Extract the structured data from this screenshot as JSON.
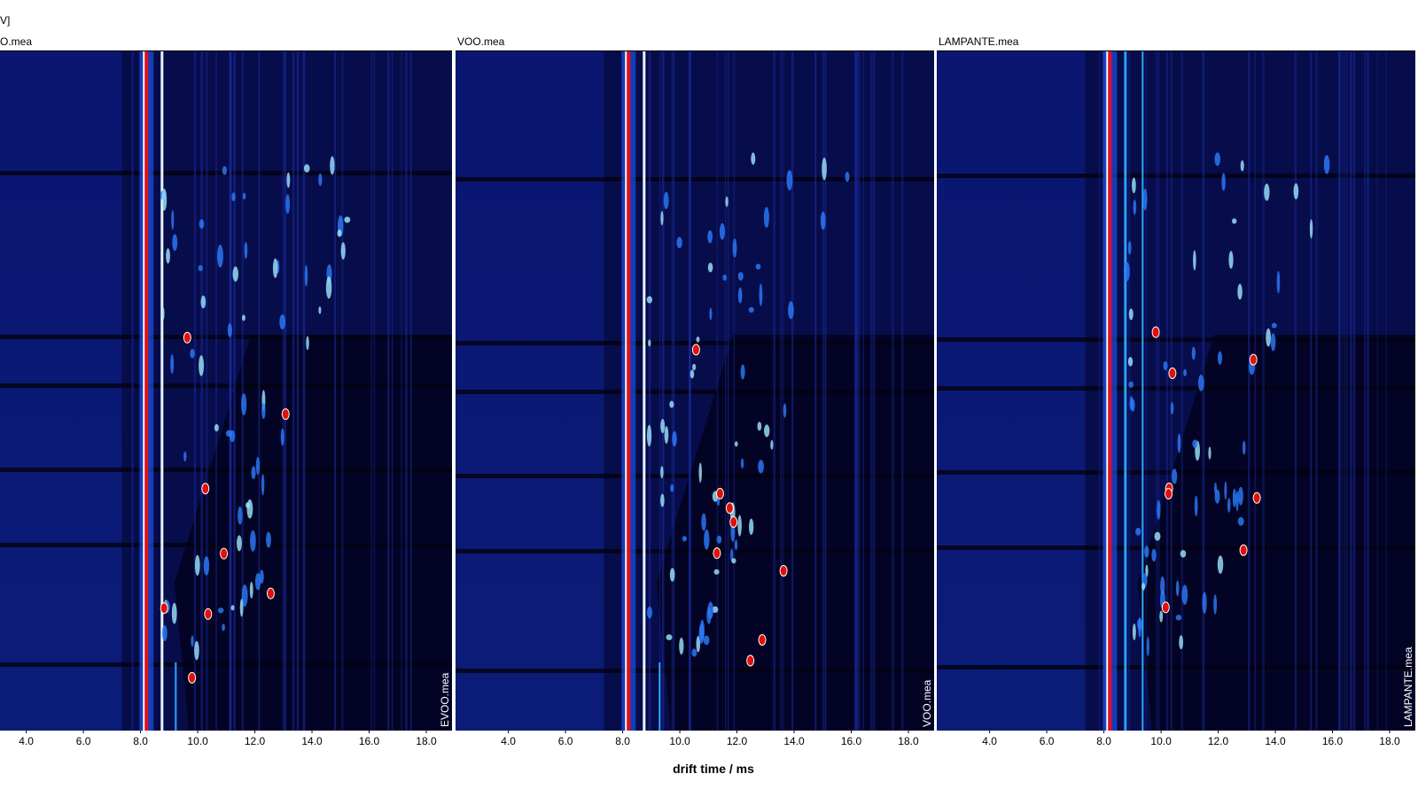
{
  "unit_label": "V]",
  "xlabel": "drift time / ms",
  "chart_data": [
    {
      "type": "heatmap",
      "title": "O.mea",
      "side_label": "EVOO.mea",
      "xlim": [
        2.15,
        18.9
      ],
      "xticks": [
        {
          "value": 4,
          "label": "4.0"
        },
        {
          "value": 6,
          "label": "6.0"
        },
        {
          "value": 8,
          "label": "8.0"
        },
        {
          "value": 10,
          "label": "10.0"
        },
        {
          "value": 12,
          "label": "12.0"
        },
        {
          "value": 14,
          "label": "14.0"
        },
        {
          "value": 16,
          "label": "16.0"
        },
        {
          "value": 18,
          "label": "18.0"
        }
      ]
    },
    {
      "type": "heatmap",
      "title": "VOO.mea",
      "side_label": "VOO.mea",
      "xlim": [
        2.15,
        18.9
      ],
      "xticks": [
        {
          "value": 4,
          "label": "4.0"
        },
        {
          "value": 6,
          "label": "6.0"
        },
        {
          "value": 8,
          "label": "8.0"
        },
        {
          "value": 10,
          "label": "10.0"
        },
        {
          "value": 12,
          "label": "12.0"
        },
        {
          "value": 14,
          "label": "14.0"
        },
        {
          "value": 16,
          "label": "16.0"
        },
        {
          "value": 18,
          "label": "18.0"
        }
      ]
    },
    {
      "type": "heatmap",
      "title": "LAMPANTE.mea",
      "side_label": "LAMPANTE.mea",
      "xlim": [
        2.15,
        18.9
      ],
      "xticks": [
        {
          "value": 4,
          "label": "4.0"
        },
        {
          "value": 6,
          "label": "6.0"
        },
        {
          "value": 8,
          "label": "8.0"
        },
        {
          "value": 10,
          "label": "10.0"
        },
        {
          "value": 12,
          "label": "12.0"
        },
        {
          "value": 14,
          "label": "14.0"
        },
        {
          "value": 16,
          "label": "16.0"
        },
        {
          "value": 18,
          "label": "18.0"
        }
      ]
    }
  ]
}
